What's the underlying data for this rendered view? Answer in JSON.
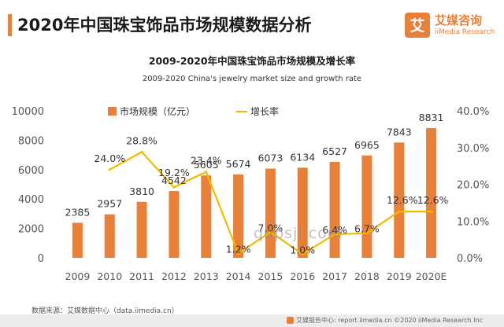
{
  "page": {
    "title": "2020年中国珠宝饰品市场规模数据分析",
    "source": "数据来源：艾媒数据中心（data.iimedia.cn）",
    "footer": "艾媒报告中心: report.iimedia.cn   ©2020  iiMedia Research  Inc",
    "watermark": "qdpsji.com"
  },
  "logo": {
    "icon_name": "iimedia-logo-icon",
    "cn": "艾媒咨询",
    "en": "iiMedia Research",
    "box_char": "艾"
  },
  "colors": {
    "bar": "#e8803a",
    "line": "#f5b800",
    "accent": "#e8803a",
    "axis_text": "#555555"
  },
  "chart_data": {
    "type": "bar",
    "title": "2009-2020年中国珠宝饰品市场规模及增长率",
    "subtitle": "2009-2020 China's jewelry market size and growth rate",
    "categories": [
      "2009",
      "2010",
      "2011",
      "2012",
      "2013",
      "2014",
      "2015",
      "2016",
      "2017",
      "2018",
      "2019",
      "2020E"
    ],
    "series": [
      {
        "name": "市场规模（亿元）",
        "type": "bar",
        "axis": "left",
        "values": [
          2385,
          2957,
          3810,
          4542,
          5605,
          5674,
          6073,
          6134,
          6527,
          6965,
          7843,
          8831
        ],
        "labels": [
          "2385",
          "2957",
          "3810",
          "4542",
          "5605",
          "5674",
          "6073",
          "6134",
          "6527",
          "6965",
          "7843",
          "8831"
        ]
      },
      {
        "name": "增长率",
        "type": "line",
        "axis": "right",
        "values": [
          null,
          24.0,
          28.8,
          19.2,
          23.4,
          1.2,
          7.0,
          1.0,
          6.4,
          6.7,
          12.6,
          12.6
        ],
        "labels": [
          "",
          "24.0%",
          "28.8%",
          "19.2%",
          "23.4%",
          "1.2%",
          "7.0%",
          "1.0%",
          "6.4%",
          "6.7%",
          "12.6%",
          "12.6%"
        ]
      }
    ],
    "y_left": {
      "min": 0,
      "max": 10000,
      "ticks": [
        "0",
        "2000",
        "4000",
        "6000",
        "8000",
        "10000"
      ]
    },
    "y_right": {
      "min": 0,
      "max": 40,
      "ticks": [
        "0.0%",
        "10.0%",
        "20.0%",
        "30.0%",
        "40.0%"
      ]
    },
    "grid": false,
    "legend": "top-left"
  }
}
